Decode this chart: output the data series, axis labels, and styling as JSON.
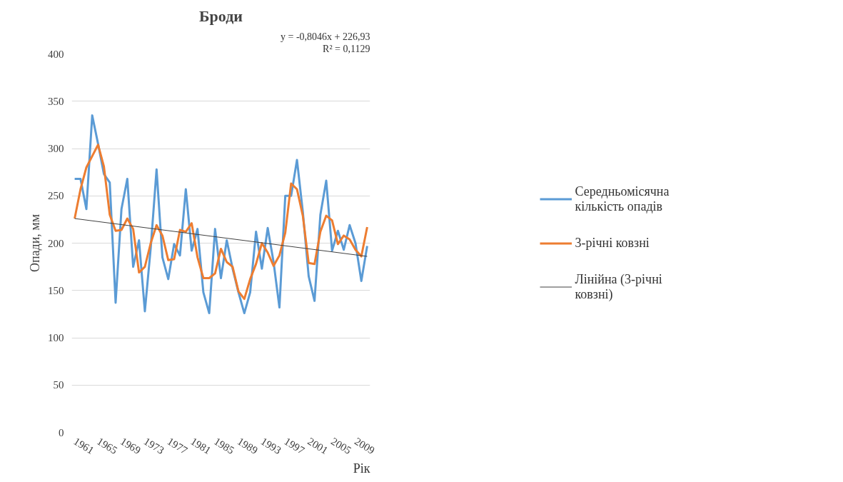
{
  "chart_data": {
    "type": "line",
    "title": "Броди",
    "xlabel": "Рік",
    "ylabel": "Опади, мм",
    "annotations": [
      "y = -0,8046x + 226,93",
      "R² = 0,1129"
    ],
    "x": [
      1961,
      1962,
      1963,
      1964,
      1965,
      1966,
      1967,
      1968,
      1969,
      1970,
      1971,
      1972,
      1973,
      1974,
      1975,
      1976,
      1977,
      1978,
      1979,
      1980,
      1981,
      1982,
      1983,
      1984,
      1985,
      1986,
      1987,
      1988,
      1989,
      1990,
      1991,
      1992,
      1993,
      1994,
      1995,
      1996,
      1997,
      1998,
      1999,
      2000,
      2001,
      2002,
      2003,
      2004,
      2005,
      2006,
      2007,
      2008,
      2009,
      2010,
      2011
    ],
    "series": [
      {
        "name": "Середньомісячна кількість опадів",
        "color": "#5b9bd5",
        "values": [
          268,
          268,
          236,
          335,
          305,
          273,
          264,
          137,
          236,
          268,
          175,
          203,
          128,
          195,
          278,
          185,
          162,
          199,
          187,
          257,
          192,
          215,
          148,
          126,
          215,
          163,
          203,
          173,
          148,
          126,
          148,
          212,
          173,
          216,
          180,
          132,
          250,
          250,
          288,
          233,
          165,
          139,
          230,
          266,
          192,
          213,
          193,
          219,
          200,
          160,
          197
        ]
      },
      {
        "name": "3-річні ковзні",
        "color": "#ed7d31",
        "values": [
          226,
          257,
          280,
          292,
          304,
          281,
          230,
          213,
          214,
          226,
          215,
          169,
          175,
          200,
          219,
          208,
          182,
          183,
          214,
          212,
          221,
          185,
          163,
          163,
          168,
          194,
          180,
          175,
          149,
          141,
          162,
          178,
          200,
          190,
          176,
          187,
          211,
          263,
          257,
          229,
          179,
          178,
          212,
          229,
          224,
          199,
          208,
          204,
          193,
          186,
          217
        ]
      },
      {
        "name": "Лінійна (3-річні ковзні)",
        "type": "line",
        "color": "#404040",
        "x": [
          1961,
          2011
        ],
        "values": [
          226,
          186
        ]
      }
    ],
    "xlim": [
      1960.5,
      2011.5
    ],
    "xticks": [
      1961,
      1965,
      1969,
      1973,
      1977,
      1981,
      1985,
      1989,
      1993,
      1997,
      2001,
      2005,
      2009
    ],
    "ylim": [
      0,
      400
    ],
    "yticks": [
      0,
      50,
      100,
      150,
      200,
      250,
      300,
      350,
      400
    ],
    "grid": "y",
    "legend": "right",
    "marker": "none",
    "line_style": "solid"
  }
}
